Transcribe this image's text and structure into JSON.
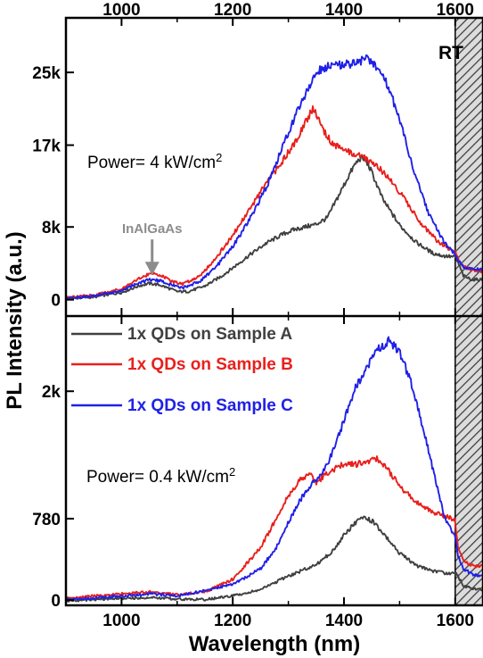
{
  "chart_data": [
    {
      "type": "line",
      "panel": "top",
      "xlabel": "",
      "ylabel": "",
      "xlim": [
        900,
        1650
      ],
      "ylim": [
        -1800,
        31000
      ],
      "x_ticks": [
        1000,
        1200,
        1400,
        1600
      ],
      "x_tick_labels": [
        "1000",
        "1200",
        "1400",
        "1600"
      ],
      "y_ticks": [
        0,
        8000,
        17000,
        25000
      ],
      "y_tick_labels": [
        "0",
        "8k",
        "17k",
        "25k"
      ],
      "power_label": "Power= 4 kW/cm²",
      "corner_label": "RT",
      "annotation": {
        "text": "InAlGaAs",
        "x": 1055,
        "y": 2600
      },
      "shaded_region": {
        "x_start": 1600,
        "x_end": 1650,
        "pattern": "hatched"
      },
      "colors": {
        "A": "#404040",
        "B": "#e8201c",
        "C": "#2020e8"
      },
      "series": [
        {
          "key": "A",
          "x": [
            900,
            950,
            1000,
            1030,
            1050,
            1070,
            1100,
            1120,
            1150,
            1180,
            1200,
            1230,
            1260,
            1290,
            1310,
            1330,
            1350,
            1370,
            1380,
            1395,
            1410,
            1420,
            1430,
            1440,
            1450,
            1470,
            1500,
            1530,
            1560,
            1580,
            1600,
            1605,
            1615,
            1630,
            1650
          ],
          "values": [
            100,
            300,
            800,
            1500,
            1800,
            1600,
            900,
            900,
            1500,
            2600,
            3500,
            4900,
            6200,
            7200,
            7700,
            8000,
            8300,
            9000,
            10200,
            12000,
            13800,
            14900,
            15600,
            15300,
            14000,
            11000,
            8200,
            6300,
            5100,
            4800,
            4700,
            4100,
            2600,
            2200,
            2200
          ]
        },
        {
          "key": "B",
          "x": [
            900,
            950,
            1000,
            1030,
            1050,
            1060,
            1070,
            1090,
            1110,
            1140,
            1170,
            1200,
            1230,
            1260,
            1290,
            1310,
            1330,
            1345,
            1350,
            1360,
            1375,
            1390,
            1410,
            1430,
            1450,
            1480,
            1510,
            1540,
            1570,
            1600,
            1605,
            1615,
            1630,
            1650
          ],
          "values": [
            200,
            500,
            1200,
            2300,
            2800,
            2900,
            2700,
            2000,
            1700,
            2600,
            4600,
            7100,
            9900,
            12800,
            15300,
            17100,
            19500,
            21000,
            20500,
            19000,
            17500,
            16700,
            16200,
            15800,
            15200,
            13500,
            11000,
            8300,
            6300,
            5200,
            4500,
            3600,
            3300,
            3100
          ]
        },
        {
          "key": "C",
          "x": [
            900,
            950,
            1000,
            1030,
            1050,
            1070,
            1090,
            1110,
            1140,
            1170,
            1200,
            1230,
            1260,
            1280,
            1300,
            1320,
            1340,
            1360,
            1380,
            1400,
            1420,
            1440,
            1460,
            1480,
            1500,
            1520,
            1550,
            1580,
            1600,
            1605,
            1615,
            1630,
            1650
          ],
          "values": [
            150,
            400,
            1000,
            1800,
            2200,
            2100,
            1600,
            1300,
            2000,
            3600,
            5800,
            8800,
            12300,
            15300,
            18400,
            21300,
            23800,
            25500,
            25700,
            25800,
            26100,
            26500,
            25500,
            23400,
            19800,
            15300,
            9800,
            6300,
            5000,
            4300,
            3600,
            3400,
            3300
          ]
        }
      ]
    },
    {
      "type": "line",
      "panel": "bottom",
      "xlabel": "Wavelength (nm)",
      "ylabel": "PL Intensity (a.u.)",
      "xlim": [
        900,
        1650
      ],
      "ylim": [
        -50,
        2720
      ],
      "x_ticks": [
        1000,
        1200,
        1400,
        1600
      ],
      "x_tick_labels": [
        "1000",
        "1200",
        "1400",
        "1600"
      ],
      "y_ticks": [
        0,
        780,
        2000
      ],
      "y_tick_labels": [
        "0",
        "780",
        "2k"
      ],
      "power_label": "Power= 0.4 kW/cm²",
      "shaded_region": {
        "x_start": 1600,
        "x_end": 1650,
        "pattern": "hatched"
      },
      "colors": {
        "A": "#404040",
        "B": "#e8201c",
        "C": "#2020e8"
      },
      "series": [
        {
          "key": "A",
          "name": "1x QDs on Sample A",
          "x": [
            900,
            950,
            1000,
            1050,
            1100,
            1150,
            1200,
            1250,
            1300,
            1350,
            1380,
            1400,
            1420,
            1435,
            1450,
            1470,
            1500,
            1530,
            1560,
            1590,
            1600,
            1605,
            1615,
            1630,
            1650
          ],
          "values": [
            -10,
            5,
            15,
            25,
            10,
            5,
            40,
            100,
            230,
            340,
            470,
            620,
            740,
            790,
            760,
            640,
            450,
            330,
            280,
            250,
            260,
            230,
            140,
            110,
            100
          ]
        },
        {
          "key": "B",
          "name": "1x QDs on Sample B",
          "x": [
            900,
            950,
            1000,
            1050,
            1100,
            1150,
            1200,
            1250,
            1280,
            1300,
            1320,
            1340,
            1350,
            1360,
            1380,
            1400,
            1420,
            1440,
            1460,
            1480,
            1500,
            1530,
            1560,
            1590,
            1600,
            1605,
            1615,
            1630,
            1650
          ],
          "values": [
            20,
            40,
            60,
            80,
            50,
            80,
            200,
            500,
            800,
            1000,
            1150,
            1200,
            1130,
            1170,
            1250,
            1300,
            1300,
            1320,
            1350,
            1240,
            1090,
            940,
            840,
            790,
            760,
            500,
            380,
            330,
            320
          ]
        },
        {
          "key": "C",
          "name": "1x QDs on Sample C",
          "x": [
            900,
            950,
            1000,
            1050,
            1100,
            1150,
            1200,
            1250,
            1280,
            1300,
            1320,
            1340,
            1360,
            1380,
            1400,
            1420,
            1440,
            1460,
            1480,
            1490,
            1500,
            1520,
            1550,
            1580,
            1600,
            1605,
            1615,
            1630,
            1650
          ],
          "values": [
            5,
            20,
            40,
            60,
            40,
            90,
            150,
            300,
            520,
            750,
            950,
            1100,
            1200,
            1420,
            1720,
            2030,
            2220,
            2400,
            2480,
            2430,
            2370,
            2100,
            1480,
            800,
            600,
            420,
            300,
            250,
            230
          ]
        }
      ]
    }
  ]
}
